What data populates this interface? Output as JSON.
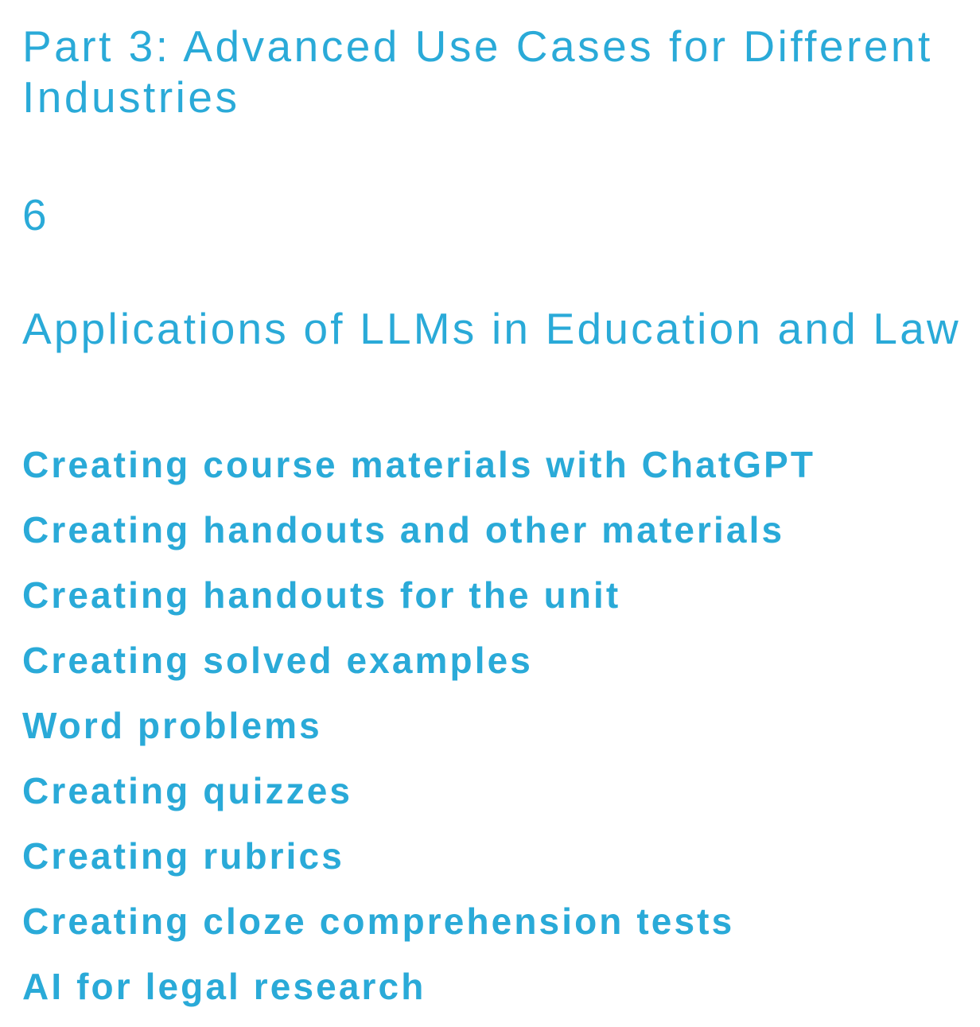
{
  "part": {
    "title": "Part 3: Advanced Use Cases for Different Industries"
  },
  "chapter": {
    "number": "6",
    "title": "Applications of LLMs in Education and Law"
  },
  "sections": [
    "Creating course materials with ChatGPT",
    "Creating handouts and other materials",
    "Creating handouts for the unit",
    "Creating solved examples",
    "Word problems",
    "Creating quizzes",
    "Creating rubrics",
    "Creating cloze comprehension tests",
    "AI for legal research"
  ],
  "colors": {
    "accent": "#2aaad8",
    "background": "#ffffff"
  }
}
